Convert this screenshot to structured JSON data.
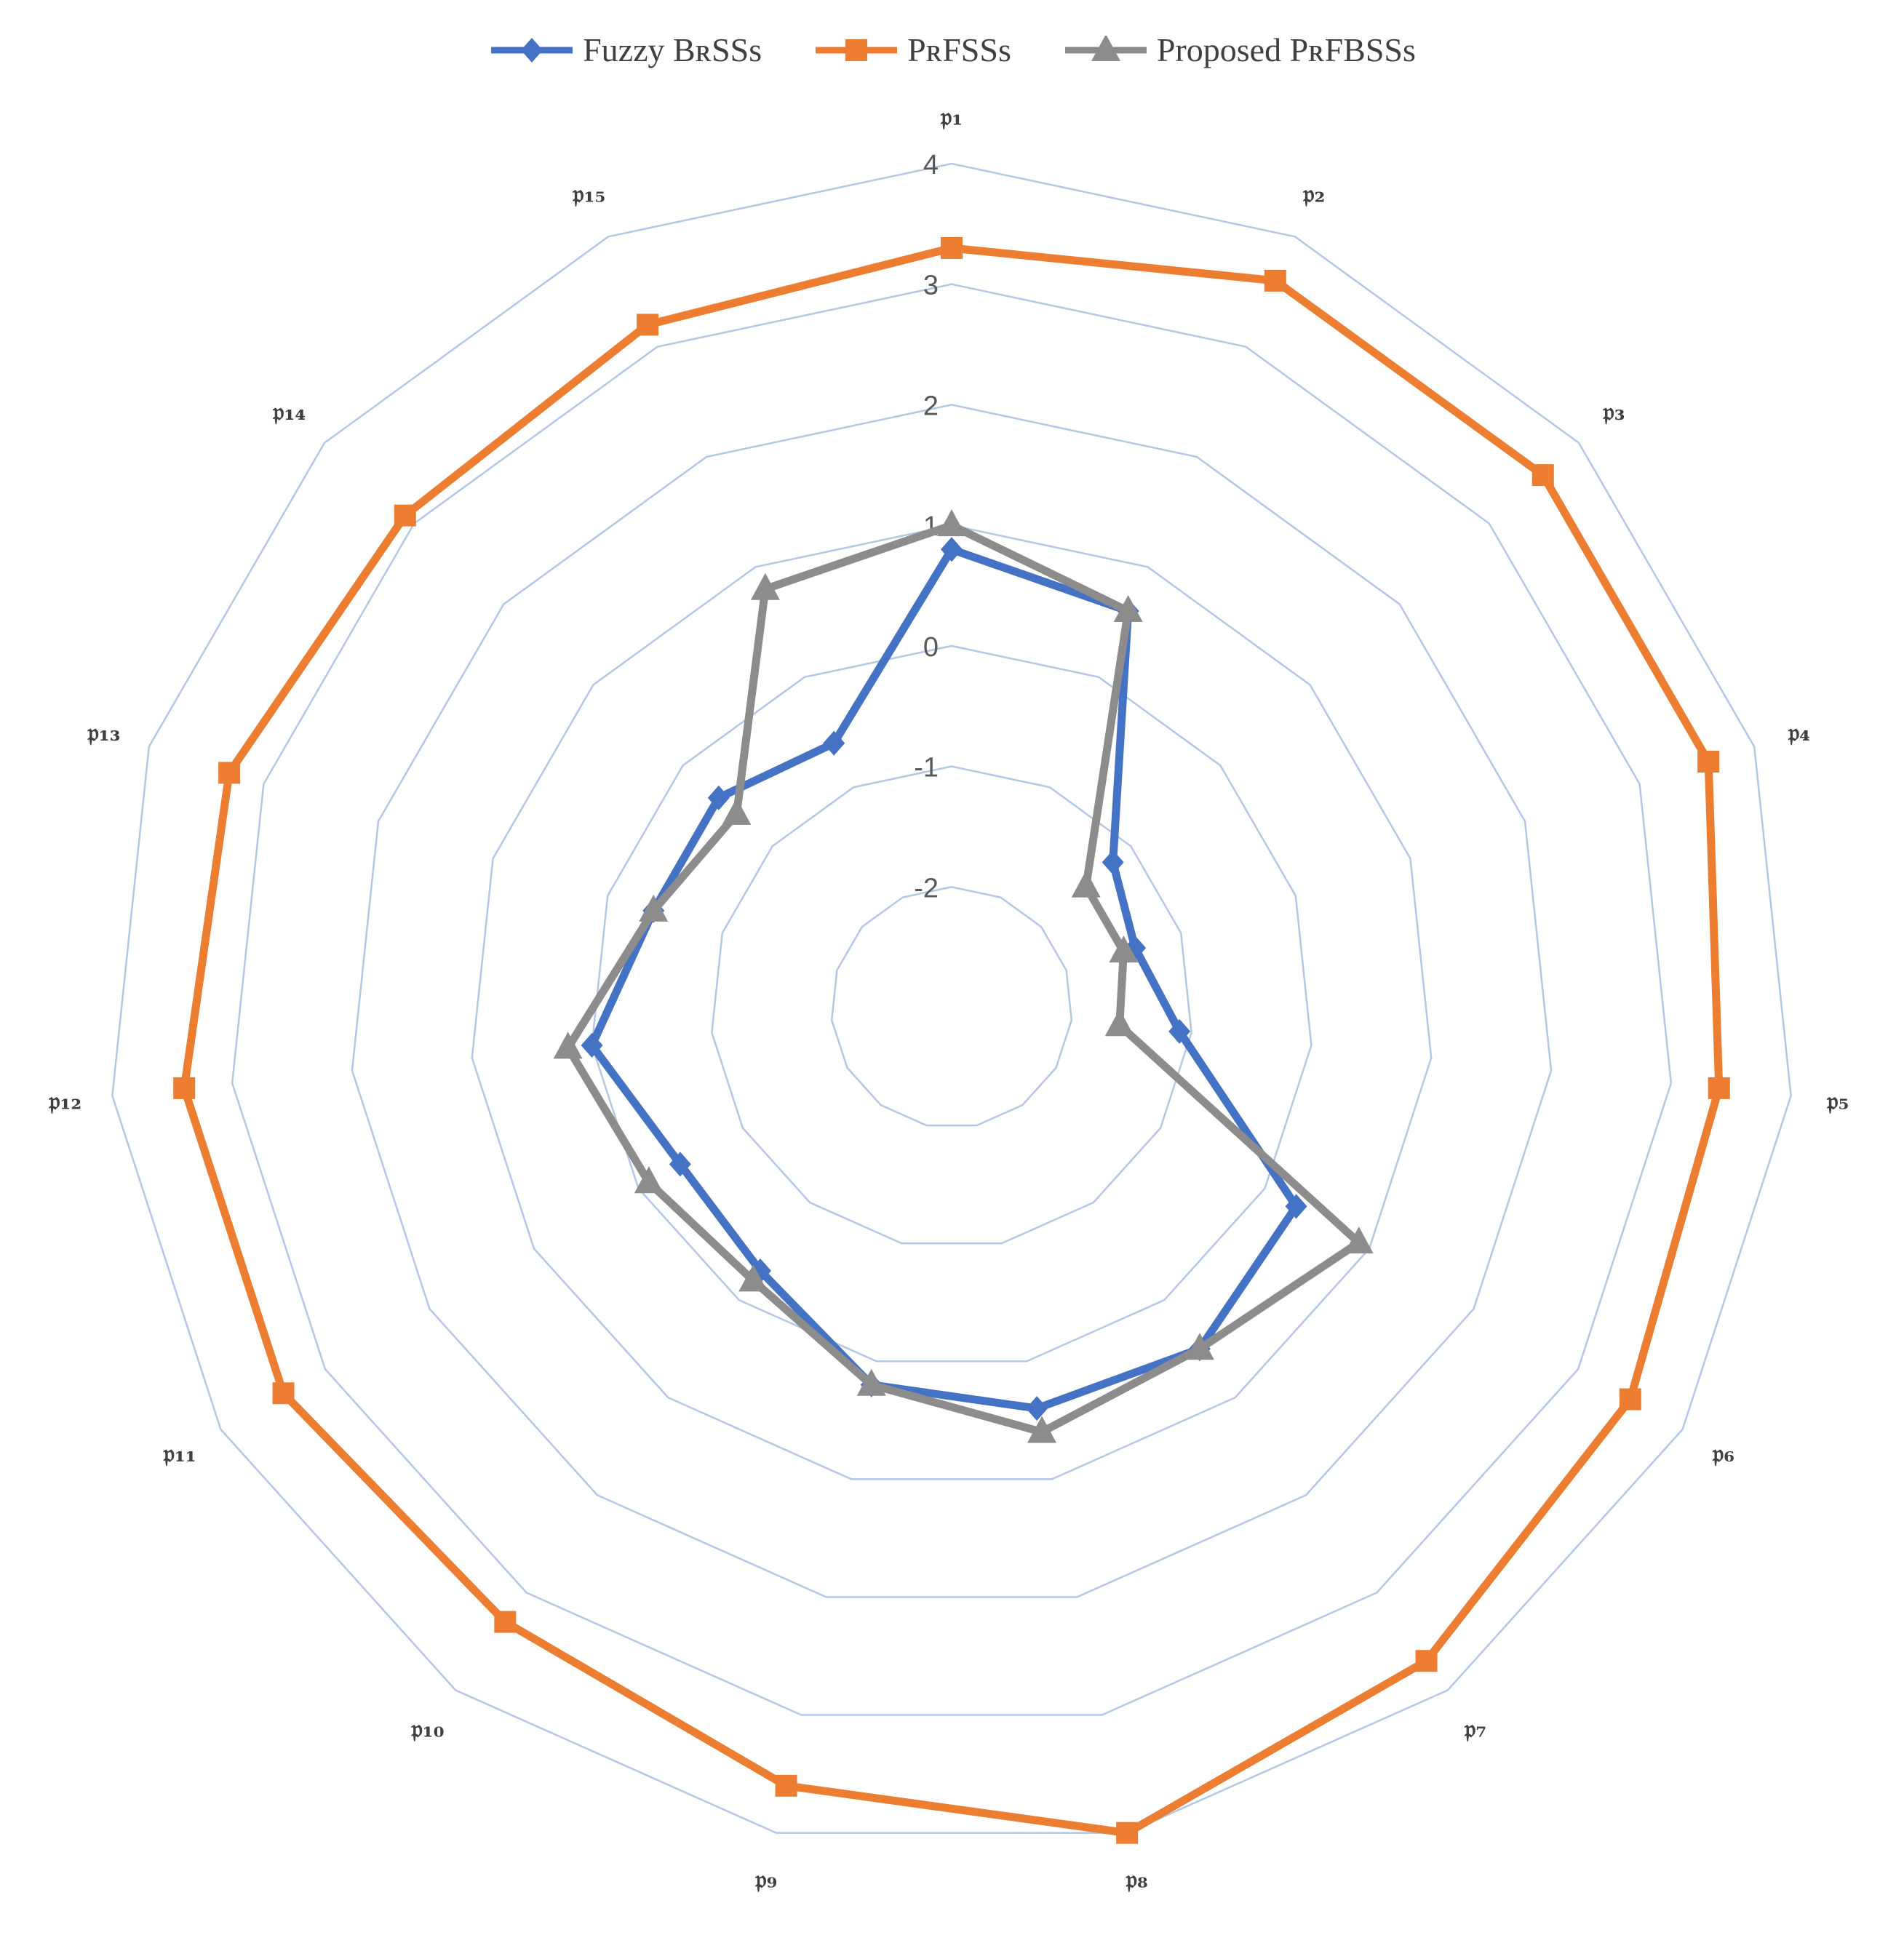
{
  "chart_data": {
    "type": "radar",
    "title": "",
    "legend_position": "top",
    "categories": [
      "𝔭₁",
      "𝔭₂",
      "𝔭₃",
      "𝔭₄",
      "𝔭₅",
      "𝔭₆",
      "𝔭₇",
      "𝔭₈",
      "𝔭₉",
      "𝔭₁₀",
      "𝔭₁₁",
      "𝔭₁₂",
      "𝔭₁₃",
      "𝔭₁₄",
      "𝔭₁₅"
    ],
    "ticks": [
      -2,
      -1,
      0,
      1,
      2,
      3,
      4
    ],
    "tick_labels": [
      "-2",
      "-1",
      "0",
      "1",
      "2",
      "3",
      "4"
    ],
    "rlim": [
      -3,
      4
    ],
    "grid": true,
    "series": [
      {
        "name": "Fuzzy BʀSSs",
        "color": "#4472C4",
        "marker": "diamond",
        "values": [
          0.8,
          0.6,
          -1.2,
          -1.4,
          -1.1,
          0.3,
          0.5,
          0.4,
          0.2,
          -0.3,
          -0.4,
          0.0,
          -0.4,
          -0.4,
          -0.6
        ]
      },
      {
        "name": "PʀFSSs",
        "color": "#ED7D31",
        "marker": "square",
        "values": [
          3.3,
          3.6,
          3.6,
          3.6,
          3.4,
          3.5,
          3.7,
          4.0,
          3.6,
          3.3,
          3.4,
          3.4,
          3.3,
          3.1,
          3.2
        ]
      },
      {
        "name": "Proposed PʀFBSSs",
        "color": "#8C8C8C",
        "marker": "triangle",
        "values": [
          1.0,
          0.6,
          -1.5,
          -1.5,
          -1.6,
          0.9,
          0.5,
          0.6,
          0.2,
          -0.2,
          -0.1,
          0.2,
          -0.4,
          -0.6,
          0.8
        ]
      }
    ]
  }
}
